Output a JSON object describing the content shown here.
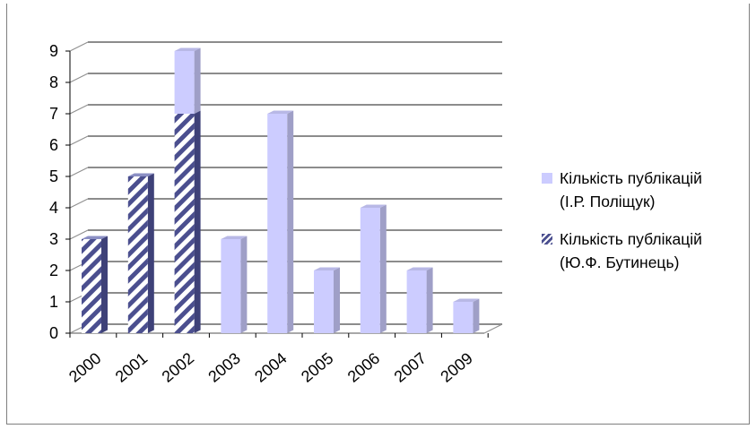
{
  "chart_data": {
    "type": "bar",
    "stacked_3d": true,
    "categories": [
      "2000",
      "2001",
      "2002",
      "2003",
      "2004",
      "2005",
      "2006",
      "2007",
      "2009"
    ],
    "series": [
      {
        "name": "Кількість публікацій (Ю.Ф. Бутинець)",
        "values": [
          3,
          5,
          7,
          0,
          0,
          0,
          0,
          0,
          0
        ],
        "pattern": "diagonal-stripes",
        "color": "#4b4f8f"
      },
      {
        "name": "Кількість публікацій (І.Р. Поліщук)",
        "values": [
          0,
          0,
          2,
          3,
          7,
          2,
          4,
          2,
          1
        ],
        "color": "#ccccff"
      }
    ],
    "ylim": [
      0,
      9
    ],
    "yticks": [
      "0",
      "1",
      "2",
      "3",
      "4",
      "5",
      "6",
      "7",
      "8",
      "9"
    ],
    "grid": true,
    "legend_position": "right"
  },
  "legend": {
    "items": [
      {
        "label": "Кількість публікацій\n(І.Р. Поліщук)",
        "color": "#ccccff",
        "pattern": "solid"
      },
      {
        "label": "Кількість публікацій\n(Ю.Ф. Бутинець)",
        "color": "#4b4f8f",
        "pattern": "diagonal-stripes"
      }
    ]
  }
}
